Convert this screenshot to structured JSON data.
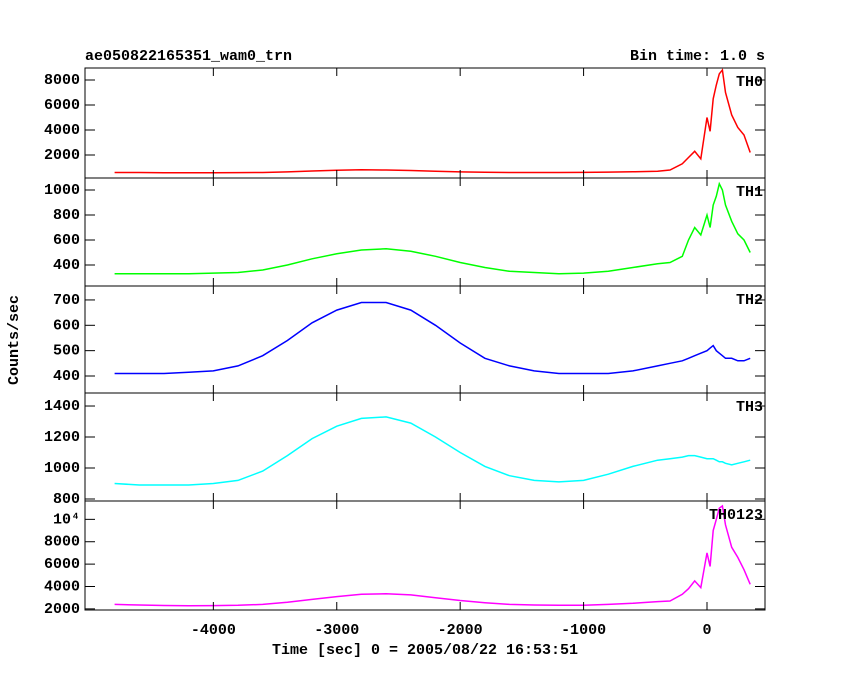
{
  "title": "ae050822165351_wam0_trn",
  "bin_time": "Bin time: 1.0 s",
  "y_label": "Counts/sec",
  "x_label": "Time [sec] 0 = 2005/08/22 16:53:51",
  "chart_data": [
    {
      "type": "line",
      "name": "TH0",
      "color": "#ff0000",
      "xlim": [
        -5040,
        470
      ],
      "xticks": [
        -4000,
        -3000,
        -2000,
        -1000,
        0
      ],
      "ylim": [
        160,
        8960
      ],
      "yticks": [
        2000,
        4000,
        6000,
        8000
      ],
      "x": [
        -4800,
        -4600,
        -4400,
        -4200,
        -4000,
        -3800,
        -3600,
        -3400,
        -3200,
        -3000,
        -2800,
        -2600,
        -2400,
        -2200,
        -2000,
        -1800,
        -1600,
        -1400,
        -1200,
        -1000,
        -800,
        -600,
        -400,
        -300,
        -200,
        -150,
        -100,
        -50,
        0,
        25,
        50,
        75,
        100,
        125,
        150,
        200,
        250,
        300,
        350
      ],
      "values": [
        600,
        600,
        580,
        580,
        580,
        590,
        600,
        650,
        720,
        780,
        820,
        800,
        760,
        700,
        650,
        620,
        600,
        600,
        600,
        610,
        630,
        660,
        700,
        800,
        1300,
        1800,
        2300,
        1700,
        5000,
        3900,
        6500,
        7600,
        8500,
        8800,
        7000,
        5200,
        4200,
        3600,
        2200
      ]
    },
    {
      "type": "line",
      "name": "TH1",
      "color": "#00ff00",
      "xlim": [
        -5040,
        470
      ],
      "xticks": [
        -4000,
        -3000,
        -2000,
        -1000,
        0
      ],
      "ylim": [
        232,
        1096
      ],
      "yticks": [
        400,
        600,
        800,
        1000
      ],
      "x": [
        -4800,
        -4600,
        -4400,
        -4200,
        -4000,
        -3800,
        -3600,
        -3400,
        -3200,
        -3000,
        -2800,
        -2600,
        -2400,
        -2200,
        -2000,
        -1800,
        -1600,
        -1400,
        -1200,
        -1000,
        -800,
        -600,
        -400,
        -300,
        -200,
        -150,
        -100,
        -50,
        0,
        25,
        50,
        75,
        100,
        125,
        150,
        200,
        250,
        300,
        350
      ],
      "values": [
        330,
        330,
        330,
        330,
        335,
        340,
        360,
        400,
        450,
        490,
        520,
        530,
        510,
        470,
        420,
        380,
        350,
        340,
        330,
        335,
        350,
        380,
        410,
        420,
        470,
        600,
        700,
        640,
        800,
        700,
        880,
        950,
        1050,
        1000,
        880,
        750,
        650,
        600,
        500
      ]
    },
    {
      "type": "line",
      "name": "TH2",
      "color": "#0000ff",
      "xlim": [
        -5040,
        470
      ],
      "xticks": [
        -4000,
        -3000,
        -2000,
        -1000,
        0
      ],
      "ylim": [
        333,
        755
      ],
      "yticks": [
        400,
        500,
        600,
        700
      ],
      "x": [
        -4800,
        -4600,
        -4400,
        -4200,
        -4000,
        -3800,
        -3600,
        -3400,
        -3200,
        -3000,
        -2800,
        -2600,
        -2400,
        -2200,
        -2000,
        -1800,
        -1600,
        -1400,
        -1200,
        -1000,
        -800,
        -600,
        -400,
        -300,
        -200,
        -150,
        -100,
        -50,
        0,
        25,
        50,
        75,
        100,
        125,
        150,
        200,
        250,
        300,
        350
      ],
      "values": [
        410,
        410,
        410,
        415,
        420,
        440,
        480,
        540,
        610,
        660,
        690,
        690,
        660,
        600,
        530,
        470,
        440,
        420,
        410,
        410,
        410,
        420,
        440,
        450,
        460,
        470,
        480,
        490,
        500,
        510,
        520,
        500,
        490,
        480,
        470,
        470,
        460,
        460,
        470
      ]
    },
    {
      "type": "line",
      "name": "TH3",
      "color": "#00ffff",
      "xlim": [
        -5040,
        470
      ],
      "xticks": [
        -4000,
        -3000,
        -2000,
        -1000,
        0
      ],
      "ylim": [
        787,
        1484
      ],
      "yticks": [
        800,
        1000,
        1200,
        1400
      ],
      "x": [
        -4800,
        -4600,
        -4400,
        -4200,
        -4000,
        -3800,
        -3600,
        -3400,
        -3200,
        -3000,
        -2800,
        -2600,
        -2400,
        -2200,
        -2000,
        -1800,
        -1600,
        -1400,
        -1200,
        -1000,
        -800,
        -600,
        -400,
        -300,
        -200,
        -150,
        -100,
        -50,
        0,
        25,
        50,
        75,
        100,
        125,
        150,
        200,
        250,
        300,
        350
      ],
      "values": [
        900,
        890,
        890,
        890,
        900,
        920,
        980,
        1080,
        1190,
        1270,
        1320,
        1330,
        1290,
        1200,
        1100,
        1010,
        950,
        920,
        910,
        920,
        960,
        1010,
        1050,
        1060,
        1070,
        1080,
        1080,
        1070,
        1060,
        1060,
        1060,
        1050,
        1040,
        1040,
        1030,
        1020,
        1030,
        1040,
        1050
      ]
    },
    {
      "type": "line",
      "name": "TH0123",
      "color": "#ff00ff",
      "xlim": [
        -5040,
        470
      ],
      "xticks": [
        -4000,
        -3000,
        -2000,
        -1000,
        0
      ],
      "ylim": [
        1900,
        11640
      ],
      "yticks": [
        2000,
        4000,
        6000,
        8000,
        {
          "value": 10000,
          "label": "10⁴"
        }
      ],
      "x": [
        -4800,
        -4600,
        -4400,
        -4200,
        -4000,
        -3800,
        -3600,
        -3400,
        -3200,
        -3000,
        -2800,
        -2600,
        -2400,
        -2200,
        -2000,
        -1800,
        -1600,
        -1400,
        -1200,
        -1000,
        -800,
        -600,
        -400,
        -300,
        -200,
        -150,
        -100,
        -50,
        0,
        25,
        50,
        75,
        100,
        125,
        150,
        200,
        250,
        300,
        350
      ],
      "values": [
        2400,
        2350,
        2300,
        2280,
        2290,
        2320,
        2400,
        2600,
        2850,
        3100,
        3300,
        3350,
        3250,
        3000,
        2750,
        2550,
        2400,
        2350,
        2320,
        2330,
        2400,
        2500,
        2650,
        2700,
        3300,
        3800,
        4500,
        3900,
        7000,
        5800,
        9000,
        10000,
        11000,
        11200,
        9500,
        7500,
        6600,
        5500,
        4200
      ]
    }
  ]
}
